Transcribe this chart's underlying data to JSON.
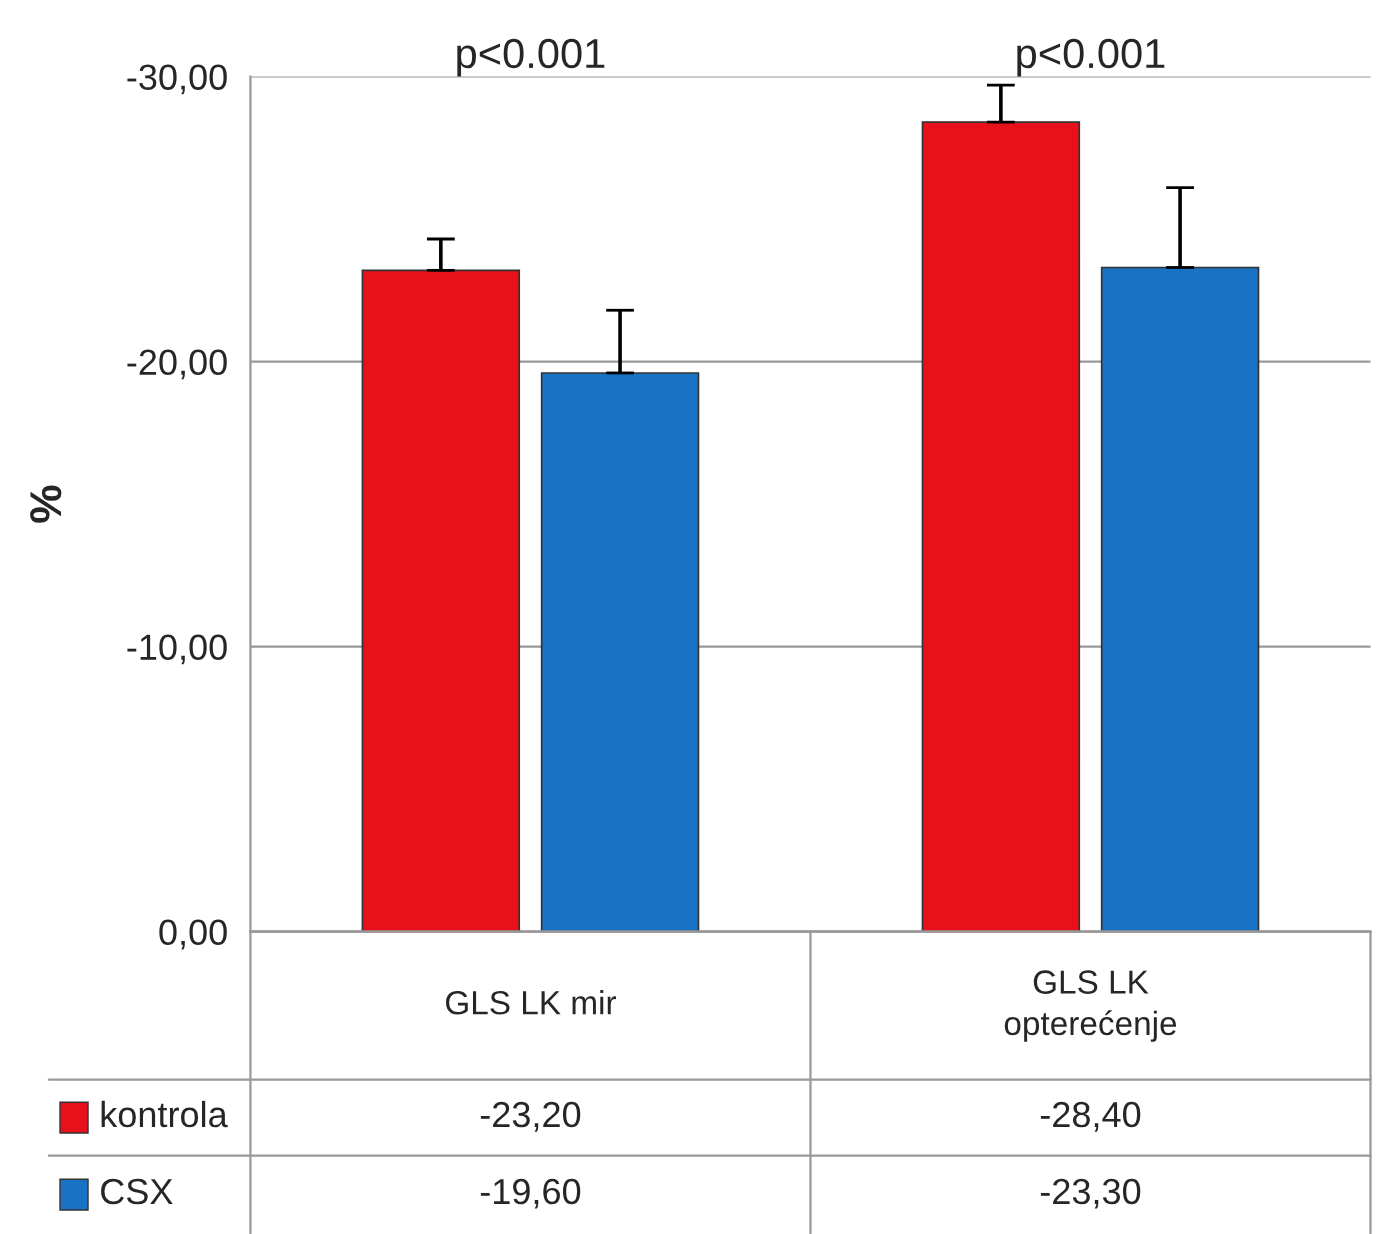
{
  "chart_data": {
    "type": "bar",
    "ylabel": "%",
    "categories": [
      "GLS LK mir",
      "GLS LK\nopterećenje"
    ],
    "series": [
      {
        "name": "kontrola",
        "color": "#e8101a",
        "values": [
          -23.2,
          -28.4
        ],
        "errors": [
          [
            -24.3,
            -23.2
          ],
          [
            -29.7,
            -28.4
          ]
        ],
        "value_labels": [
          "-23,20",
          "-28,40"
        ]
      },
      {
        "name": "CSX",
        "color": "#1a72c4",
        "values": [
          -19.6,
          -23.3
        ],
        "errors": [
          [
            -21.8,
            -19.6
          ],
          [
            -26.1,
            -23.3
          ]
        ],
        "value_labels": [
          "-19,60",
          "-23,30"
        ]
      }
    ],
    "ylim": [
      0,
      -30
    ],
    "yticks": [
      {
        "value": 0,
        "label": "0,00"
      },
      {
        "value": -10,
        "label": "-10,00"
      },
      {
        "value": -20,
        "label": "-20,00"
      },
      {
        "value": -30,
        "label": "-30,00"
      }
    ],
    "grid": "y",
    "legend": "bottom left",
    "annotations": [
      "p<0.001",
      "p<0.001"
    ]
  }
}
